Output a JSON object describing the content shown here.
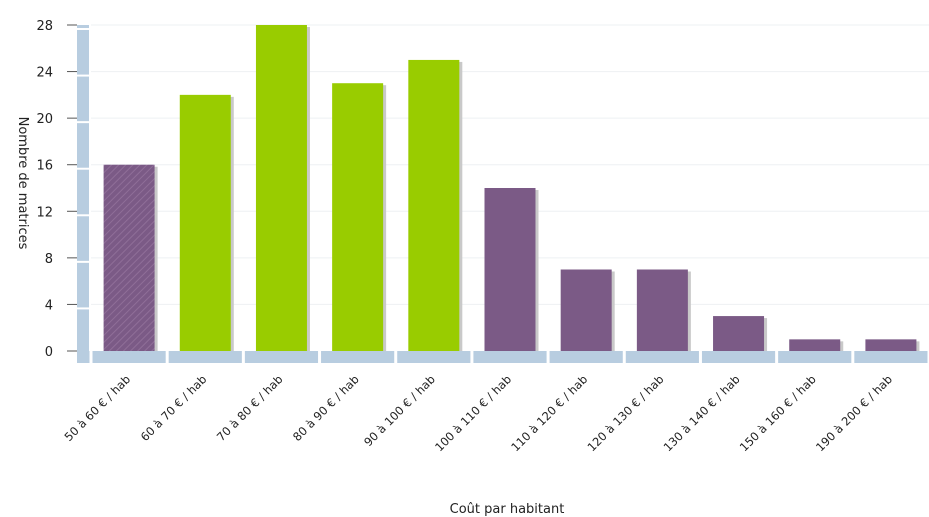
{
  "chart_data": {
    "type": "bar",
    "title": "",
    "xlabel": "Coût par habitant",
    "ylabel": "Nombre de matrices",
    "ylim": [
      0,
      28
    ],
    "yticks": [
      0,
      4,
      8,
      12,
      16,
      20,
      24,
      28
    ],
    "grid": true,
    "categories": [
      "50 à 60 € /  hab",
      "60 à 70 € /  hab",
      "70 à 80 € /  hab",
      "80 à 90 € /  hab",
      "90 à 100 € /  hab",
      "100 à 110 € /  hab",
      "110 à 120 € /  hab",
      "120 à 130 € /  hab",
      "130 à 140 € /  hab",
      "150 à 160 € /  hab",
      "190 à 200 € /  hab"
    ],
    "values": [
      16,
      22,
      28,
      23,
      25,
      14,
      7,
      7,
      3,
      1,
      1
    ],
    "bar_colors": [
      "#7b5a86",
      "#99cc00",
      "#99cc00",
      "#99cc00",
      "#99cc00",
      "#7b5a86",
      "#7b5a86",
      "#7b5a86",
      "#7b5a86",
      "#7b5a86",
      "#7b5a86"
    ],
    "highlight_pattern": [
      true,
      false,
      false,
      false,
      false,
      false,
      false,
      false,
      false,
      false,
      false
    ],
    "axis_color": "#b8cde0"
  }
}
